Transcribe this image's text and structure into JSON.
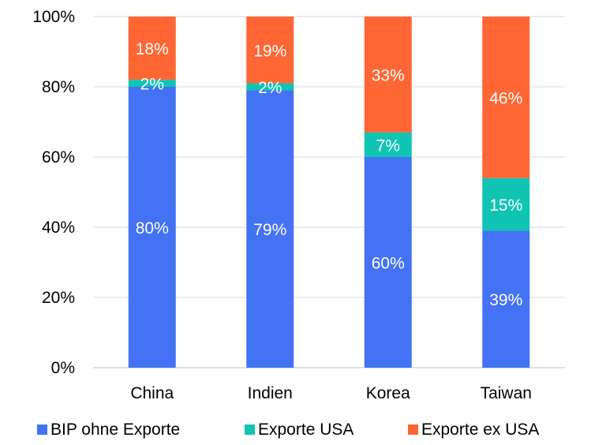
{
  "chart_data": {
    "type": "bar",
    "stacked": true,
    "categories": [
      "China",
      "Indien",
      "Korea",
      "Taiwan"
    ],
    "series": [
      {
        "name": "BIP ohne Exporte",
        "values": [
          80,
          79,
          60,
          39
        ],
        "labels": [
          "80%",
          "79%",
          "60%",
          "39%"
        ],
        "color": "#4472F4"
      },
      {
        "name": "Exporte USA",
        "values": [
          2,
          2,
          7,
          15
        ],
        "labels": [
          "2%",
          "2%",
          "7%",
          "15%"
        ],
        "color": "#10C4B4"
      },
      {
        "name": "Exporte ex USA",
        "values": [
          18,
          19,
          33,
          46
        ],
        "labels": [
          "18%",
          "19%",
          "33%",
          "46%"
        ],
        "color": "#FF6633"
      }
    ],
    "y_ticks": [
      {
        "value": 0,
        "label": "0%"
      },
      {
        "value": 20,
        "label": "20%"
      },
      {
        "value": 40,
        "label": "40%"
      },
      {
        "value": 60,
        "label": "60%"
      },
      {
        "value": 80,
        "label": "80%"
      },
      {
        "value": 100,
        "label": "100%"
      }
    ],
    "ylim": [
      0,
      100
    ],
    "grid": true,
    "legend_position": "bottom",
    "title": "",
    "xlabel": "",
    "ylabel": ""
  },
  "colors": {
    "grid": "#D9D9D9",
    "axis": "#BFBFBF"
  }
}
